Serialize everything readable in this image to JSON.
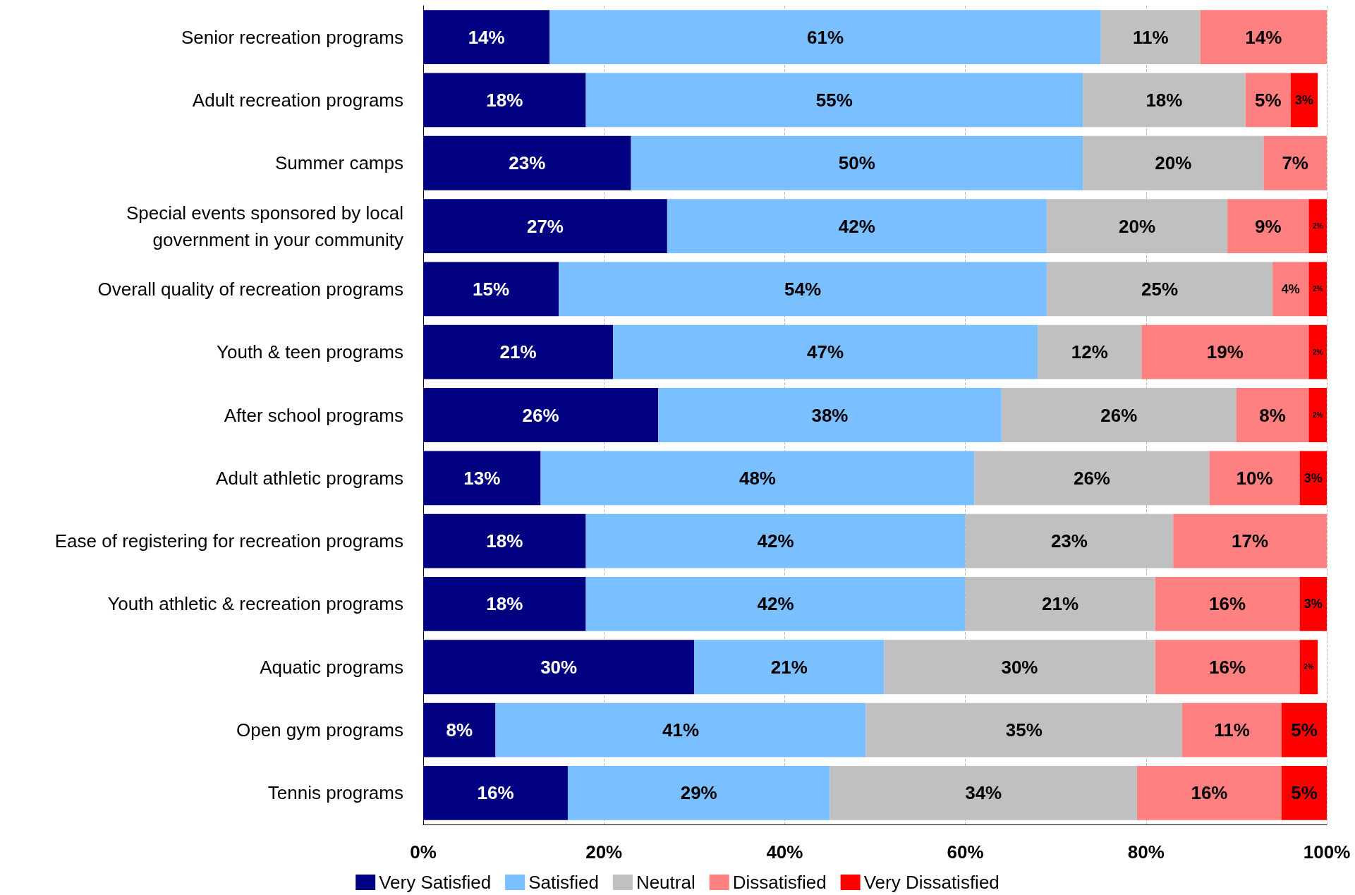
{
  "chart_data": {
    "type": "bar",
    "orientation": "horizontal",
    "stacked": true,
    "grid": "x",
    "legend": "bottom",
    "categories": [
      "Senior recreation programs",
      "Adult recreation programs",
      "Summer camps",
      "Special events sponsored by local\ngovernment in your community",
      "Overall quality of recreation programs",
      "Youth & teen programs",
      "After school programs",
      "Adult athletic programs",
      "Ease of registering for recreation programs",
      "Youth athletic & recreation programs",
      "Aquatic programs",
      "Open gym programs",
      "Tennis programs"
    ],
    "xlim": [
      0,
      100
    ],
    "xticks": [
      {
        "value": 0,
        "label": "0%"
      },
      {
        "value": 20,
        "label": "20%"
      },
      {
        "value": 40,
        "label": "40%"
      },
      {
        "value": 60,
        "label": "60%"
      },
      {
        "value": 80,
        "label": "80%"
      },
      {
        "value": 100,
        "label": "100%"
      }
    ],
    "series": [
      {
        "name": "Very Satisfied",
        "color": "#000080",
        "values": [
          14,
          18,
          23,
          27,
          15,
          21,
          26,
          13,
          18,
          18,
          30,
          8,
          16
        ],
        "value_labels": [
          "14%",
          "18%",
          "23%",
          "27%",
          "15%",
          "21%",
          "26%",
          "13%",
          "18%",
          "18%",
          "30%",
          "8%",
          "16%"
        ]
      },
      {
        "name": "Satisfied",
        "color": "#7abfff",
        "values": [
          61,
          55,
          50,
          42,
          54,
          47,
          38,
          48,
          42,
          42,
          21,
          41,
          29
        ],
        "value_labels": [
          "61%",
          "55%",
          "50%",
          "42%",
          "54%",
          "47%",
          "38%",
          "48%",
          "42%",
          "42%",
          "21%",
          "41%",
          "29%"
        ]
      },
      {
        "name": "Neutral",
        "color": "#c0c0c0",
        "values": [
          11,
          18,
          20,
          20,
          25,
          11.5,
          26,
          26,
          23,
          21,
          30,
          35,
          34
        ],
        "value_labels": [
          "11%",
          "18%",
          "20%",
          "20%",
          "25%",
          "12%",
          "26%",
          "26%",
          "23%",
          "21%",
          "30%",
          "35%",
          "34%"
        ]
      },
      {
        "name": "Dissatisfied",
        "color": "#ff8080",
        "values": [
          14,
          5,
          7,
          9,
          4,
          18.5,
          8,
          10,
          17,
          16,
          16,
          11,
          16
        ],
        "value_labels": [
          "14%",
          "5%",
          "7%",
          "9%",
          "4%",
          "19%",
          "8%",
          "10%",
          "17%",
          "16%",
          "16%",
          "11%",
          "16%"
        ]
      },
      {
        "name": "Very Dissatisfied",
        "color": "#ff0000",
        "values": [
          null,
          3,
          null,
          2,
          2,
          2,
          2,
          3,
          null,
          3,
          2,
          5,
          5
        ],
        "value_labels": [
          null,
          "3%",
          null,
          "2%",
          "2%",
          "2%",
          "2%",
          "3%",
          null,
          "3%",
          "2%",
          "5%",
          "5%"
        ]
      }
    ]
  }
}
